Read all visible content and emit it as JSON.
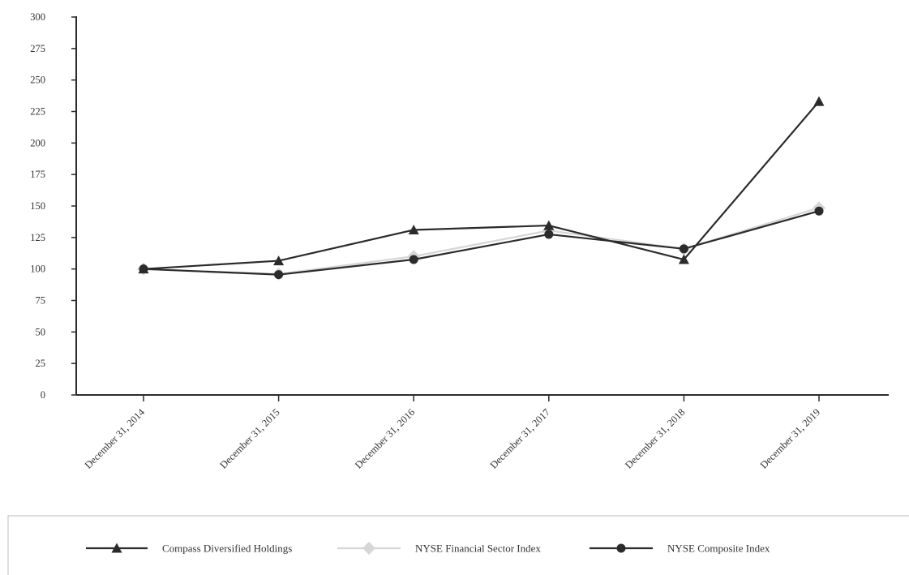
{
  "chart_data": {
    "type": "line",
    "title": "",
    "xlabel": "",
    "ylabel": "",
    "categories": [
      "December 31, 2014",
      "December 31, 2015",
      "December 31, 2016",
      "December 31, 2017",
      "December 31, 2018",
      "December 31, 2019"
    ],
    "ylim": [
      0,
      300
    ],
    "yticks": [
      0,
      25,
      50,
      75,
      100,
      125,
      150,
      175,
      200,
      225,
      250,
      275,
      300
    ],
    "grid": false,
    "legend_position": "bottom",
    "series": [
      {
        "name": "Compass Diversified Holdings",
        "marker": "triangle",
        "color": "#2b2b2b",
        "values": [
          100,
          106.5,
          131,
          134.5,
          107.5,
          233
        ]
      },
      {
        "name": "NYSE Financial Sector Index",
        "marker": "diamond",
        "color": "#d6d6d6",
        "values": [
          100,
          96,
          110,
          130.5,
          116,
          148.5
        ]
      },
      {
        "name": "NYSE Composite Index",
        "marker": "circle",
        "color": "#2b2b2b",
        "values": [
          100,
          95.5,
          107.5,
          127.5,
          116,
          146
        ]
      }
    ]
  }
}
